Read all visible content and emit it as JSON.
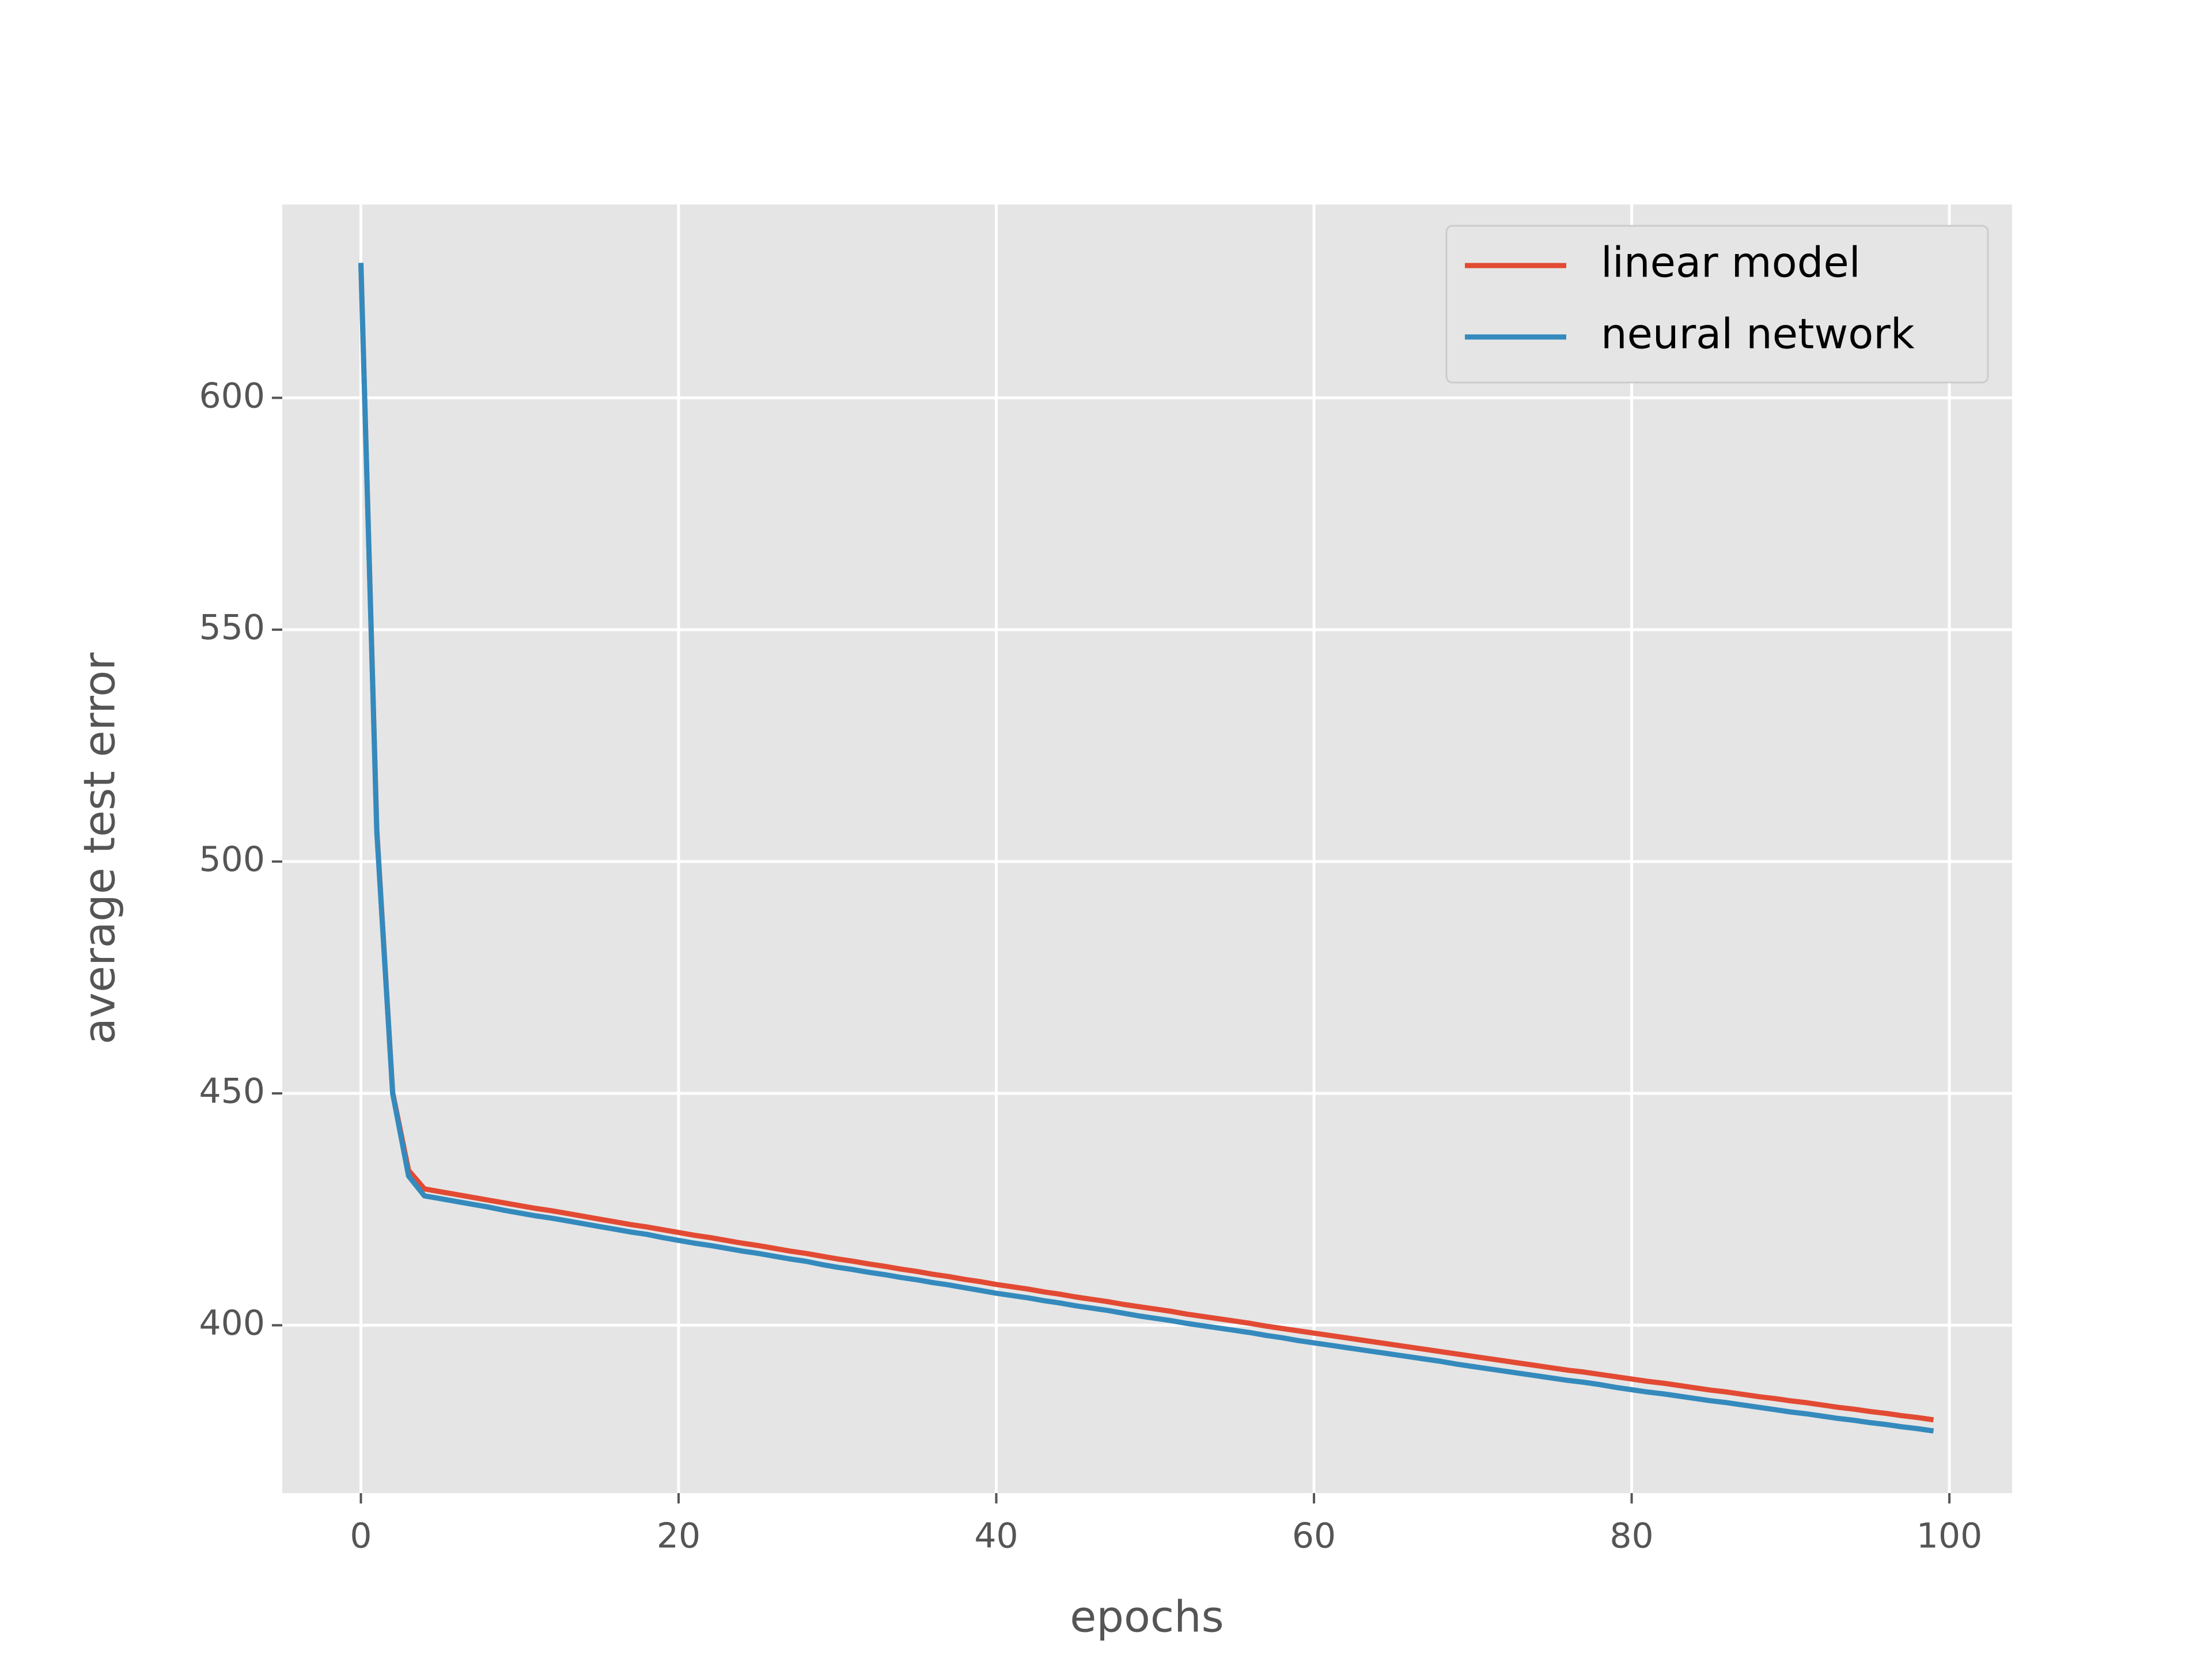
{
  "chart_data": {
    "type": "line",
    "xlabel": "epochs",
    "ylabel": "average test error",
    "x": [
      0,
      1,
      2,
      3,
      4,
      5,
      6,
      7,
      8,
      9,
      10,
      11,
      12,
      13,
      14,
      15,
      16,
      17,
      18,
      19,
      20,
      21,
      22,
      23,
      24,
      25,
      26,
      27,
      28,
      29,
      30,
      31,
      32,
      33,
      34,
      35,
      36,
      37,
      38,
      39,
      40,
      41,
      42,
      43,
      44,
      45,
      46,
      47,
      48,
      49,
      50,
      51,
      52,
      53,
      54,
      55,
      56,
      57,
      58,
      59,
      60,
      61,
      62,
      63,
      64,
      65,
      66,
      67,
      68,
      69,
      70,
      71,
      72,
      73,
      74,
      75,
      76,
      77,
      78,
      79,
      80,
      81,
      82,
      83,
      84,
      85,
      86,
      87,
      88,
      89,
      90,
      91,
      92,
      93,
      94,
      95,
      96,
      97,
      98,
      99
    ],
    "series": [
      {
        "name": "linear model",
        "color": "#E24A33",
        "values": [
          629.1,
          506.9,
          450.2,
          433.4,
          429.4,
          428.8,
          428.2,
          427.6,
          427.0,
          426.4,
          425.8,
          425.2,
          424.7,
          424.1,
          423.5,
          422.9,
          422.3,
          421.7,
          421.2,
          420.6,
          420.0,
          419.4,
          418.9,
          418.3,
          417.7,
          417.2,
          416.6,
          416.0,
          415.5,
          414.9,
          414.3,
          413.8,
          413.2,
          412.7,
          412.1,
          411.6,
          411.0,
          410.5,
          409.9,
          409.4,
          408.8,
          408.3,
          407.8,
          407.2,
          406.7,
          406.1,
          405.6,
          405.1,
          404.5,
          404.0,
          403.5,
          403.0,
          402.4,
          401.9,
          401.4,
          400.9,
          400.4,
          399.8,
          399.3,
          398.8,
          398.3,
          397.8,
          397.3,
          396.8,
          396.3,
          395.8,
          395.3,
          394.8,
          394.3,
          393.8,
          393.3,
          392.8,
          392.3,
          391.8,
          391.3,
          390.8,
          390.3,
          389.9,
          389.4,
          388.9,
          388.4,
          387.9,
          387.5,
          387.0,
          386.5,
          386.0,
          385.6,
          385.1,
          384.6,
          384.2,
          383.7,
          383.3,
          382.8,
          382.3,
          381.9,
          381.4,
          381.0,
          380.5,
          380.1,
          379.6
        ]
      },
      {
        "name": "neural network",
        "color": "#348ABD",
        "values": [
          629.1,
          506.5,
          450.0,
          432.2,
          427.9,
          427.3,
          426.7,
          426.1,
          425.5,
          424.8,
          424.2,
          423.6,
          423.1,
          422.5,
          421.9,
          421.3,
          420.7,
          420.1,
          419.6,
          418.9,
          418.3,
          417.7,
          417.2,
          416.6,
          416.0,
          415.5,
          414.9,
          414.3,
          413.8,
          413.1,
          412.5,
          412.0,
          411.4,
          410.9,
          410.3,
          409.8,
          409.2,
          408.7,
          408.1,
          407.5,
          406.9,
          406.4,
          405.9,
          405.3,
          404.8,
          404.2,
          403.7,
          403.2,
          402.6,
          402.0,
          401.5,
          401.0,
          400.4,
          399.9,
          399.4,
          398.9,
          398.4,
          397.8,
          397.3,
          396.7,
          396.2,
          395.7,
          395.2,
          394.7,
          394.2,
          393.7,
          393.2,
          392.7,
          392.2,
          391.6,
          391.1,
          390.6,
          390.1,
          389.6,
          389.1,
          388.6,
          388.1,
          387.7,
          387.2,
          386.6,
          386.1,
          385.6,
          385.2,
          384.7,
          384.2,
          383.7,
          383.3,
          382.8,
          382.3,
          381.8,
          381.3,
          380.9,
          380.4,
          379.9,
          379.5,
          379.0,
          378.6,
          378.1,
          377.7,
          377.2
        ]
      }
    ],
    "xlim": [
      -4.95,
      103.95
    ],
    "xticks": [
      0,
      20,
      40,
      60,
      80,
      100
    ],
    "ylim": [
      363.8,
      641.7
    ],
    "yticks": [
      400,
      450,
      500,
      550,
      600
    ],
    "grid": true,
    "legend": "upper right"
  }
}
